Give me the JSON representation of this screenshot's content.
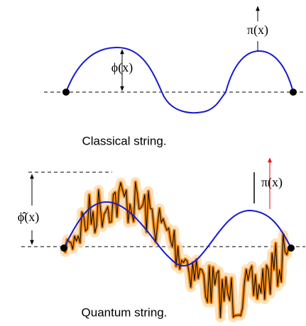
{
  "classical": {
    "momentum_label": "π(x)",
    "field_label": "ϕ(x)",
    "caption": "Classical string."
  },
  "quantum": {
    "field_label": "ϕ̂(x)",
    "momentum_label": "π(x)",
    "caption": "Quantum string."
  }
}
